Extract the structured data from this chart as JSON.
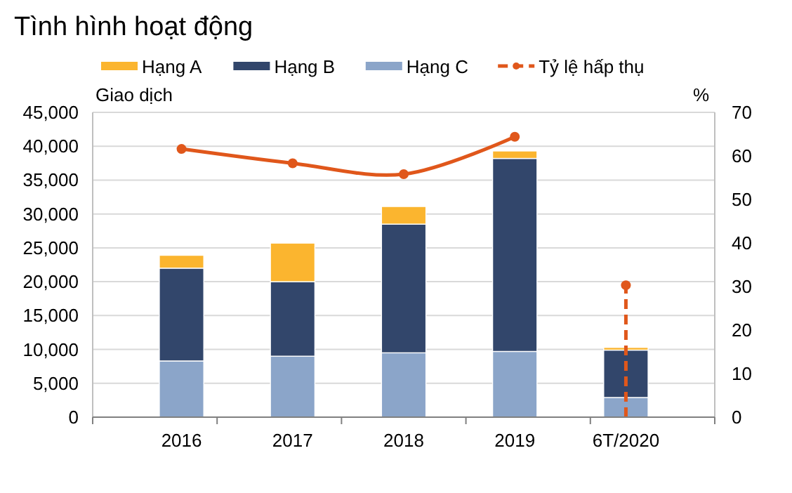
{
  "chart_data": {
    "type": "bar",
    "title": "Tình hình hoạt động",
    "ylabel": "Giao dịch",
    "y2label": "%",
    "categories": [
      "2016",
      "2017",
      "2018",
      "2019",
      "6T/2020"
    ],
    "stacked": true,
    "series": [
      {
        "name": "Hạng C",
        "color": "#8ba5c9",
        "values": [
          8300,
          9000,
          9500,
          9700,
          2900
        ]
      },
      {
        "name": "Hạng B",
        "color": "#32466b",
        "values": [
          13700,
          11000,
          19000,
          28500,
          7000
        ]
      },
      {
        "name": "Hạng A",
        "color": "#fbb52f",
        "values": [
          1900,
          5700,
          2600,
          1100,
          400
        ]
      },
      {
        "name": "Tỷ lệ hấp thụ",
        "type": "line",
        "axis": "y2",
        "color": "#e0571b",
        "marker": "circle",
        "line_style": "solid",
        "values": [
          61.6,
          58.3,
          55.8,
          64.4,
          null
        ]
      },
      {
        "type": "lollipop",
        "axis": "y2",
        "color": "#e0571b",
        "marker": "circle",
        "line_style": "dashed",
        "values": [
          null,
          null,
          null,
          null,
          30.3
        ]
      }
    ],
    "ylim": [
      0,
      45000
    ],
    "yticks": [
      {
        "value": 0,
        "label": "0"
      },
      {
        "value": 5000,
        "label": "5,000"
      },
      {
        "value": 10000,
        "label": "10,000"
      },
      {
        "value": 15000,
        "label": "15,000"
      },
      {
        "value": 20000,
        "label": "20,000"
      },
      {
        "value": 25000,
        "label": "25,000"
      },
      {
        "value": 30000,
        "label": "30,000"
      },
      {
        "value": 35000,
        "label": "35,000"
      },
      {
        "value": 40000,
        "label": "40,000"
      },
      {
        "value": 45000,
        "label": "45,000"
      }
    ],
    "y2lim": [
      0,
      70
    ],
    "y2ticks": [
      0,
      10,
      20,
      30,
      40,
      50,
      60,
      70
    ],
    "grid": "y",
    "legend": "top"
  }
}
